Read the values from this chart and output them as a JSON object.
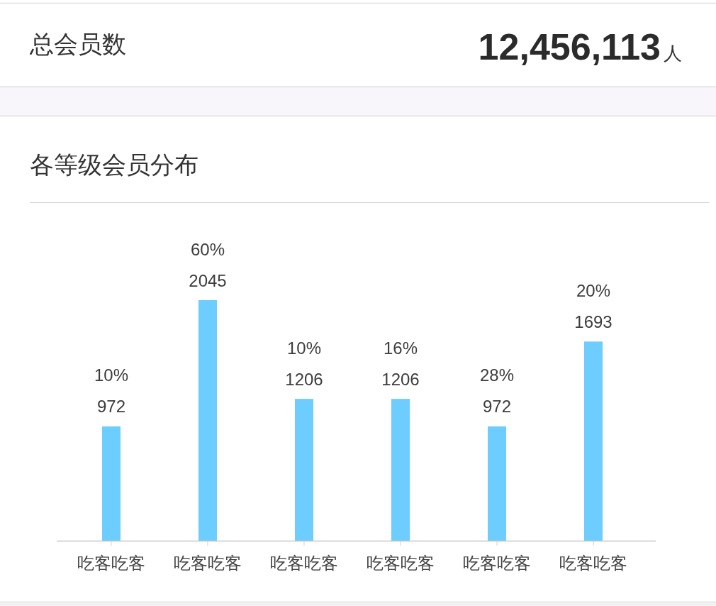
{
  "chart_data": [
    {
      "type": "other",
      "title": "总会员数",
      "annotations": [
        "12,456,113",
        "人"
      ]
    },
    {
      "type": "bar",
      "title": "各等级会员分布",
      "categories": [
        "吃客吃客",
        "吃客吃客",
        "吃客吃客",
        "吃客吃客",
        "吃客吃客",
        "吃客吃客"
      ],
      "values": [
        972,
        2045,
        1206,
        1206,
        972,
        1693
      ],
      "color": "#6ccdfe",
      "value_labels": [
        "10%\n972",
        "60%\n2045",
        "10%\n1206",
        "16%\n1206",
        "28%\n972",
        "20%\n1693"
      ]
    }
  ]
}
